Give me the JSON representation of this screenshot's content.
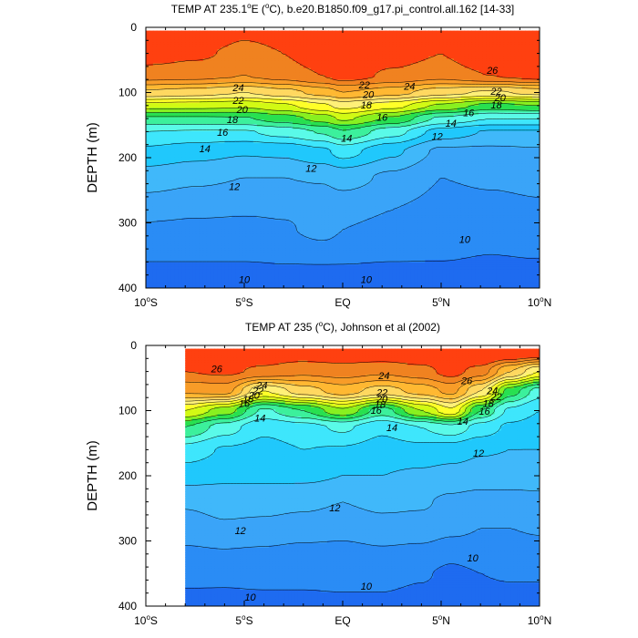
{
  "chart_data": [
    {
      "type": "heatmap",
      "subtype": "filled-contour",
      "title": "TEMP AT 235.1°E (°C), b.e20.B1850.f09_g17.pi_control.all.162 [14-33]",
      "title_parts": {
        "pre": "TEMP AT 235.1",
        "deg": "o",
        "mid": "E (",
        "deg2": "o",
        "post": "C), b.e20.B1850.f09_g17.pi_control.all.162 [14-33]"
      },
      "xlabel": "",
      "ylabel": "DEPTH (m)",
      "xlim": [
        -10,
        10
      ],
      "ylim": [
        400,
        0
      ],
      "xticks": [
        {
          "v": -10,
          "num": "10",
          "deg": "o",
          "hem": "S"
        },
        {
          "v": -5,
          "num": "5",
          "deg": "o",
          "hem": "S"
        },
        {
          "v": 0,
          "num": "EQ",
          "deg": "",
          "hem": ""
        },
        {
          "v": 5,
          "num": "5",
          "deg": "o",
          "hem": "N"
        },
        {
          "v": 10,
          "num": "10",
          "deg": "o",
          "hem": "N"
        }
      ],
      "yticks": [
        0,
        100,
        200,
        300,
        400
      ],
      "data_xlim": [
        -10,
        10
      ],
      "data_top": 5,
      "levels": [
        10,
        11,
        12,
        13,
        14,
        15,
        16,
        17,
        18,
        19,
        20,
        21,
        22,
        23,
        24,
        25,
        26
      ],
      "colors": [
        "#1e6bf0",
        "#2a8cf5",
        "#3aa4f8",
        "#40b8fa",
        "#20c8fc",
        "#3ee6fc",
        "#5afae8",
        "#3cf09c",
        "#28e050",
        "#88f020",
        "#d2fa14",
        "#ffff28",
        "#fff078",
        "#ffd860",
        "#ffb832",
        "#f89c28",
        "#f08220",
        "#ff4010"
      ],
      "x": [
        -10,
        -7.5,
        -5,
        -3,
        -1,
        0,
        2.5,
        5,
        7.5,
        10
      ],
      "profiles": [
        {
          "t": [
            28,
            27,
            26.2,
            26.4,
            27,
            27.5,
            27,
            26.5,
            28.5,
            29
          ]
        },
        {
          "t": [
            26.6,
            26.2,
            25.7,
            26.0,
            26.8,
            27.2,
            26.5,
            26.0,
            27.2,
            27.5
          ]
        },
        {
          "t": [
            25.4,
            25.3,
            25.0,
            25.4,
            26.0,
            26.5,
            25.8,
            25.3,
            26.0,
            26.4
          ]
        },
        {
          "t": [
            22.8,
            22.5,
            22.0,
            22.6,
            23.4,
            24.0,
            23.4,
            22.4,
            21.8,
            22.4
          ]
        },
        {
          "t": [
            19.5,
            19.4,
            19.2,
            19.8,
            20.8,
            21.4,
            20.4,
            18.8,
            17.6,
            18.0
          ]
        },
        {
          "t": [
            16.8,
            16.8,
            16.9,
            17.5,
            18.4,
            19.2,
            17.8,
            15.8,
            15.0,
            15.0
          ]
        },
        {
          "t": [
            15.0,
            14.9,
            14.9,
            15.4,
            16.1,
            16.9,
            15.4,
            13.6,
            12.9,
            12.9
          ]
        },
        {
          "t": [
            13.8,
            13.4,
            13.1,
            13.2,
            13.8,
            14.4,
            13.2,
            11.8,
            11.8,
            11.9
          ]
        },
        {
          "t": [
            12.5,
            12.2,
            12.0,
            12.0,
            12.1,
            12.4,
            11.8,
            11.0,
            11.1,
            11.2
          ]
        },
        {
          "t": [
            11.4,
            11.2,
            11.1,
            11.1,
            11.2,
            11.3,
            11.0,
            10.7,
            10.8,
            10.9
          ]
        },
        {
          "t": [
            10.8,
            10.7,
            10.7,
            10.9,
            11.3,
            11.0,
            10.7,
            10.5,
            10.4,
            10.5
          ]
        },
        {
          "t": [
            10.5,
            10.5,
            10.5,
            10.6,
            10.8,
            10.7,
            10.5,
            10.4,
            10.1,
            10.3
          ]
        },
        {
          "t": [
            9.8,
            9.8,
            9.8,
            9.9,
            9.9,
            9.9,
            9.8,
            9.8,
            9.6,
            9.7
          ]
        },
        {
          "t": [
            9.2,
            9.2,
            9.2,
            9.3,
            9.3,
            9.3,
            9.3,
            9.2,
            9.2,
            9.2
          ]
        }
      ],
      "depths": [
        5,
        40,
        75,
        100,
        120,
        140,
        160,
        190,
        230,
        280,
        310,
        340,
        370,
        400
      ],
      "labels": [
        {
          "text": "24",
          "x": -5.3,
          "y": 92
        },
        {
          "text": "22",
          "x": -5.3,
          "y": 112
        },
        {
          "text": "20",
          "x": -5.1,
          "y": 126
        },
        {
          "text": "18",
          "x": -5.6,
          "y": 141
        },
        {
          "text": "16",
          "x": -6.1,
          "y": 161
        },
        {
          "text": "14",
          "x": -7.0,
          "y": 186
        },
        {
          "text": "12",
          "x": -5.5,
          "y": 244
        },
        {
          "text": "14",
          "x": 0.2,
          "y": 170
        },
        {
          "text": "12",
          "x": -1.6,
          "y": 216
        },
        {
          "text": "16",
          "x": 2.0,
          "y": 138
        },
        {
          "text": "18",
          "x": 1.2,
          "y": 119
        },
        {
          "text": "20",
          "x": 1.3,
          "y": 103
        },
        {
          "text": "22",
          "x": 1.1,
          "y": 88
        },
        {
          "text": "24",
          "x": 3.4,
          "y": 90
        },
        {
          "text": "26",
          "x": 7.6,
          "y": 66
        },
        {
          "text": "22",
          "x": 7.8,
          "y": 98
        },
        {
          "text": "20",
          "x": 8.0,
          "y": 108
        },
        {
          "text": "18",
          "x": 7.8,
          "y": 119
        },
        {
          "text": "16",
          "x": 6.4,
          "y": 131
        },
        {
          "text": "14",
          "x": 5.5,
          "y": 147
        },
        {
          "text": "12",
          "x": 4.8,
          "y": 167
        },
        {
          "text": "10",
          "x": 6.2,
          "y": 325
        },
        {
          "text": "10",
          "x": -5.0,
          "y": 387
        },
        {
          "text": "10",
          "x": 1.2,
          "y": 387
        }
      ]
    },
    {
      "type": "heatmap",
      "subtype": "filled-contour",
      "title": "TEMP AT 235 (°C), Johnson et al (2002)",
      "title_parts": {
        "pre": "TEMP AT 235 (",
        "deg": "o",
        "mid": "C), Johnson et al (2002)",
        "deg2": "",
        "post": ""
      },
      "xlabel": "",
      "ylabel": "DEPTH (m)",
      "xlim": [
        -10,
        10
      ],
      "ylim": [
        400,
        0
      ],
      "xticks": [
        {
          "v": -10,
          "num": "10",
          "deg": "o",
          "hem": "S"
        },
        {
          "v": -5,
          "num": "5",
          "deg": "o",
          "hem": "S"
        },
        {
          "v": 0,
          "num": "EQ",
          "deg": "",
          "hem": ""
        },
        {
          "v": 5,
          "num": "5",
          "deg": "o",
          "hem": "N"
        },
        {
          "v": 10,
          "num": "10",
          "deg": "o",
          "hem": "N"
        }
      ],
      "yticks": [
        0,
        100,
        200,
        300,
        400
      ],
      "data_xlim": [
        -8,
        10
      ],
      "data_top": 5,
      "levels": [
        10,
        11,
        12,
        13,
        14,
        15,
        16,
        17,
        18,
        19,
        20,
        21,
        22,
        23,
        24,
        25,
        26
      ],
      "colors": [
        "#1e6bf0",
        "#2a8cf5",
        "#3aa4f8",
        "#40b8fa",
        "#20c8fc",
        "#3ee6fc",
        "#5afae8",
        "#3cf09c",
        "#28e050",
        "#88f020",
        "#d2fa14",
        "#ffff28",
        "#fff078",
        "#ffd860",
        "#ffb832",
        "#f89c28",
        "#f08220",
        "#ff4010"
      ],
      "x": [
        -8,
        -6,
        -4,
        -2,
        0,
        2,
        4,
        5.5,
        7,
        8.5,
        10
      ],
      "profiles": [
        {
          "t": [
            26.8,
            26.8,
            27.0,
            27.0,
            27.2,
            27.2,
            27.5,
            27.8,
            28.5,
            28.6,
            28.6
          ]
        },
        {
          "t": [
            26.0,
            26.2,
            25.8,
            25.3,
            25.5,
            25.2,
            25.6,
            26.4,
            25.5,
            23.0,
            21.0
          ]
        },
        {
          "t": [
            24.2,
            24.4,
            21.0,
            22.5,
            23.5,
            22.5,
            23.4,
            24.3,
            22.0,
            17.5,
            15.5
          ]
        },
        {
          "t": [
            20.0,
            18.5,
            15.8,
            17.0,
            18.8,
            16.5,
            19.0,
            20.8,
            17.0,
            14.8,
            14.0
          ]
        },
        {
          "t": [
            17.0,
            15.5,
            14.2,
            14.6,
            15.2,
            14.2,
            15.0,
            15.7,
            14.6,
            13.8,
            13.5
          ]
        },
        {
          "t": [
            14.6,
            13.9,
            13.7,
            14.0,
            13.9,
            13.6,
            13.7,
            13.5,
            13.1,
            13.0,
            13.0
          ]
        },
        {
          "t": [
            13.4,
            13.2,
            13.2,
            13.2,
            13.0,
            13.0,
            12.8,
            12.6,
            12.5,
            12.5,
            12.5
          ]
        },
        {
          "t": [
            12.1,
            12.3,
            12.3,
            12.2,
            12.0,
            12.2,
            12.1,
            11.8,
            11.6,
            11.6,
            11.7
          ]
        },
        {
          "t": [
            11.6,
            11.9,
            11.8,
            11.6,
            11.4,
            11.7,
            11.7,
            11.3,
            11.0,
            11.0,
            11.1
          ]
        },
        {
          "t": [
            10.8,
            10.9,
            10.8,
            10.6,
            10.6,
            10.8,
            10.6,
            10.2,
            10.4,
            10.5,
            10.6
          ]
        },
        {
          "t": [
            10.3,
            10.2,
            10.3,
            10.2,
            10.3,
            10.3,
            10.1,
            9.8,
            10.0,
            10.1,
            10.1
          ]
        },
        {
          "t": [
            9.6,
            9.7,
            9.7,
            9.8,
            9.8,
            9.8,
            9.6,
            9.4,
            9.5,
            9.5,
            9.5
          ]
        }
      ],
      "depths": [
        5,
        40,
        70,
        100,
        125,
        160,
        200,
        240,
        280,
        320,
        350,
        400
      ],
      "labels": [
        {
          "text": "26",
          "x": -6.4,
          "y": 36
        },
        {
          "text": "24",
          "x": -4.1,
          "y": 61
        },
        {
          "text": "22",
          "x": -4.3,
          "y": 69
        },
        {
          "text": "20",
          "x": -4.5,
          "y": 76
        },
        {
          "text": "18",
          "x": -4.8,
          "y": 82
        },
        {
          "text": "16",
          "x": -5.0,
          "y": 89
        },
        {
          "text": "14",
          "x": -4.2,
          "y": 111
        },
        {
          "text": "24",
          "x": 2.1,
          "y": 46
        },
        {
          "text": "22",
          "x": 2.0,
          "y": 72
        },
        {
          "text": "20",
          "x": 2.0,
          "y": 82
        },
        {
          "text": "18",
          "x": 1.9,
          "y": 90
        },
        {
          "text": "16",
          "x": 1.7,
          "y": 99
        },
        {
          "text": "14",
          "x": 2.5,
          "y": 126
        },
        {
          "text": "26",
          "x": 6.3,
          "y": 54
        },
        {
          "text": "24",
          "x": 7.6,
          "y": 69
        },
        {
          "text": "22",
          "x": 7.8,
          "y": 78
        },
        {
          "text": "18",
          "x": 7.4,
          "y": 89
        },
        {
          "text": "16",
          "x": 7.2,
          "y": 101
        },
        {
          "text": "14",
          "x": 6.1,
          "y": 116
        },
        {
          "text": "12",
          "x": 6.9,
          "y": 165
        },
        {
          "text": "12",
          "x": -0.4,
          "y": 249
        },
        {
          "text": "12",
          "x": -5.2,
          "y": 284
        },
        {
          "text": "10",
          "x": -4.7,
          "y": 386
        },
        {
          "text": "10",
          "x": 1.2,
          "y": 369
        },
        {
          "text": "10",
          "x": 6.6,
          "y": 326
        }
      ]
    }
  ]
}
